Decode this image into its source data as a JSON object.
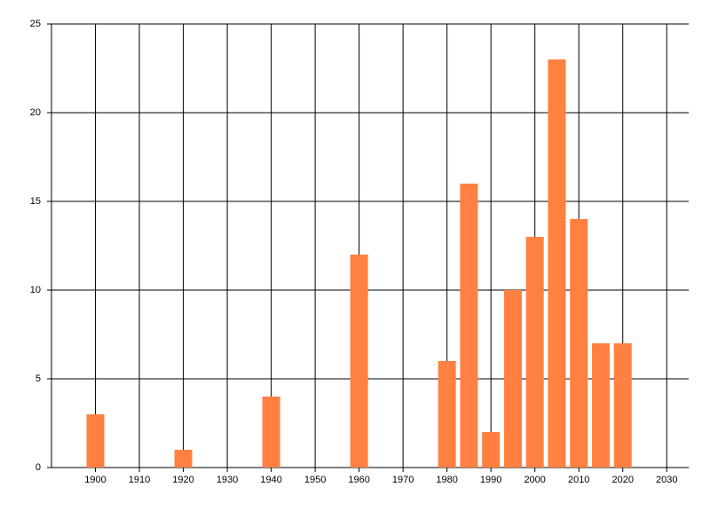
{
  "chart_data": {
    "type": "bar",
    "x": [
      1900,
      1920,
      1940,
      1960,
      1980,
      1985,
      1990,
      1995,
      2000,
      2005,
      2010,
      2015,
      2020
    ],
    "values": [
      3,
      1,
      4,
      12,
      6,
      16,
      2,
      10,
      13,
      23,
      14,
      7,
      7
    ],
    "color": "#ff8040",
    "xlim": [
      1890,
      2035
    ],
    "xticks": [
      1900,
      1910,
      1920,
      1930,
      1940,
      1950,
      1960,
      1970,
      1980,
      1990,
      2000,
      2010,
      2020,
      2030
    ],
    "ylim": [
      0,
      25
    ],
    "yticks": [
      0,
      5,
      10,
      15,
      20,
      25
    ],
    "grid": true
  }
}
